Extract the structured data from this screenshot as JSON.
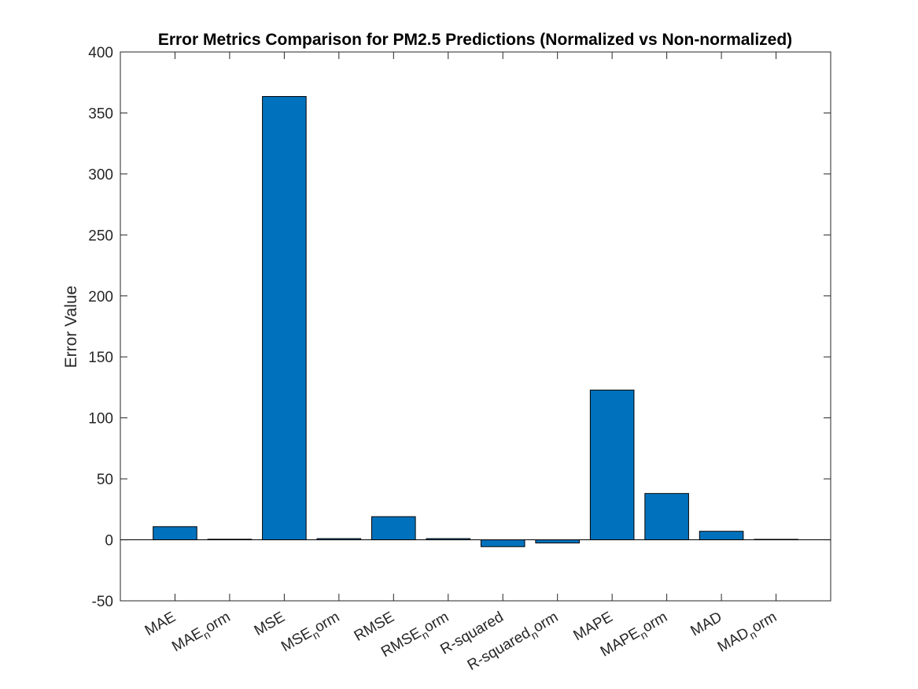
{
  "chart_data": {
    "type": "bar",
    "title": "Error Metrics Comparison for PM2.5 Predictions (Normalized vs Non-normalized)",
    "xlabel": "",
    "ylabel": "Error Value",
    "ylim": [
      -50,
      400
    ],
    "yticks": [
      -50,
      0,
      50,
      100,
      150,
      200,
      250,
      300,
      350,
      400
    ],
    "categories": [
      {
        "base": "MAE",
        "sub": ""
      },
      {
        "base": "MAE",
        "sub": "n",
        "suffix": "orm"
      },
      {
        "base": "MSE",
        "sub": ""
      },
      {
        "base": "MSE",
        "sub": "n",
        "suffix": "orm"
      },
      {
        "base": "RMSE",
        "sub": ""
      },
      {
        "base": "RMSE",
        "sub": "n",
        "suffix": "orm"
      },
      {
        "base": "R-squared",
        "sub": ""
      },
      {
        "base": "R-squared",
        "sub": "n",
        "suffix": "orm"
      },
      {
        "base": "MAPE",
        "sub": ""
      },
      {
        "base": "MAPE",
        "sub": "n",
        "suffix": "orm"
      },
      {
        "base": "MAD",
        "sub": ""
      },
      {
        "base": "MAD",
        "sub": "n",
        "suffix": "orm"
      }
    ],
    "values": [
      10.8,
      0.5,
      363.5,
      1.0,
      19.0,
      1.0,
      -5.6,
      -2.6,
      122.8,
      38.0,
      7.0,
      0.4
    ],
    "bar_color": "#0072BD",
    "grid": false,
    "legend": "none"
  }
}
